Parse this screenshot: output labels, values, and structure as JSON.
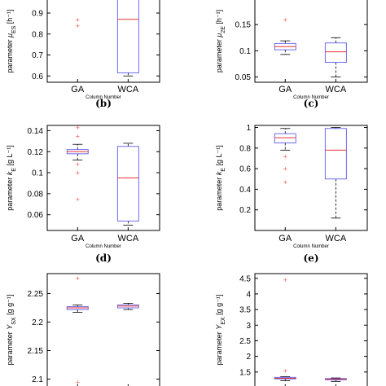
{
  "colors": {
    "box": "#5b5bf0",
    "median": "#ee3333",
    "whisker": "#000000",
    "outlier": "#ee5555"
  },
  "chart_data": [
    {
      "panel": "(b)",
      "type": "box",
      "ylabel_param": "parameter",
      "ylabel_sym": "μ",
      "ylabel_sub": "ES",
      "ylabel_unit": "[h⁻¹]",
      "xlabel": "Column Number",
      "categories": [
        "GA",
        "WCA"
      ],
      "ylim": [
        0.57,
        0.97
      ],
      "yticks": [
        0.6,
        0.7,
        0.8,
        0.9
      ],
      "boxes": [
        {
          "median": null,
          "q1": null,
          "q3": null,
          "whislo": null,
          "whishi": null,
          "outliers": [
            0.87,
            0.84
          ]
        },
        {
          "median": 0.87,
          "q1": 0.615,
          "q3": 1.0,
          "whislo": 0.6,
          "whishi": 1.0,
          "outliers": []
        }
      ]
    },
    {
      "panel": "(c)",
      "type": "box",
      "ylabel_param": "parameter",
      "ylabel_sym": "μ",
      "ylabel_sub": "2E",
      "ylabel_unit": "[h⁻¹]",
      "xlabel": "Column Number",
      "categories": [
        "GA",
        "WCA"
      ],
      "ylim": [
        0.04,
        0.2
      ],
      "yticks": [
        0.05,
        0.1,
        0.15
      ],
      "boxes": [
        {
          "median": 0.108,
          "q1": 0.102,
          "q3": 0.114,
          "whislo": 0.093,
          "whishi": 0.119,
          "outliers": [
            0.16
          ]
        },
        {
          "median": 0.098,
          "q1": 0.078,
          "q3": 0.115,
          "whislo": 0.05,
          "whishi": 0.125,
          "outliers": []
        }
      ]
    },
    {
      "panel": "(d)",
      "type": "box",
      "ylabel_param": "parameter",
      "ylabel_sym": "k",
      "ylabel_sub": "E",
      "ylabel_unit": "[g L⁻¹]",
      "xlabel": "Column Number",
      "categories": [
        "GA",
        "WCA"
      ],
      "ylim": [
        0.045,
        0.145
      ],
      "yticks": [
        0.06,
        0.08,
        0.1,
        0.12,
        0.14
      ],
      "boxes": [
        {
          "median": 0.12,
          "q1": 0.118,
          "q3": 0.122,
          "whislo": 0.112,
          "whishi": 0.127,
          "outliers": [
            0.143,
            0.135,
            0.108,
            0.1,
            0.075
          ]
        },
        {
          "median": 0.095,
          "q1": 0.054,
          "q3": 0.125,
          "whislo": 0.05,
          "whishi": 0.128,
          "outliers": []
        }
      ]
    },
    {
      "panel": "(e)",
      "type": "box",
      "ylabel_param": "parameter",
      "ylabel_sym": "k",
      "ylabel_sub": "E",
      "ylabel_unit": "[g L⁻¹]",
      "xlabel": "Column Number",
      "categories": [
        "GA",
        "WCA"
      ],
      "ylim": [
        0.0,
        1.02
      ],
      "yticks": [
        0.2,
        0.4,
        0.6,
        0.8,
        1
      ],
      "boxes": [
        {
          "median": 0.9,
          "q1": 0.85,
          "q3": 0.94,
          "whislo": 0.78,
          "whishi": 0.99,
          "outliers": [
            0.72,
            0.6,
            0.47
          ]
        },
        {
          "median": 0.78,
          "q1": 0.5,
          "q3": 0.99,
          "whislo": 0.12,
          "whishi": 1.0,
          "outliers": []
        }
      ]
    },
    {
      "panel": "",
      "type": "box",
      "ylabel_param": "parameter",
      "ylabel_sym": "Y",
      "ylabel_sub": "SX",
      "ylabel_unit": "[g g⁻¹]",
      "xlabel": "",
      "categories": [
        "",
        ""
      ],
      "ylim": [
        2.085,
        2.285
      ],
      "yticks": [
        2.1,
        2.15,
        2.2,
        2.25
      ],
      "boxes": [
        {
          "median": 2.225,
          "q1": 2.222,
          "q3": 2.227,
          "whislo": 2.217,
          "whishi": 2.23,
          "outliers": [
            2.277,
            2.095
          ]
        },
        {
          "median": 2.228,
          "q1": 2.225,
          "q3": 2.23,
          "whislo": 2.222,
          "whishi": 2.233,
          "outliers": []
        }
      ]
    },
    {
      "panel": "",
      "type": "box",
      "ylabel_param": "parameter",
      "ylabel_sym": "Y",
      "ylabel_sub": "EX",
      "ylabel_unit": "[g g⁻¹]",
      "xlabel": "",
      "categories": [
        "",
        ""
      ],
      "ylim": [
        1.0,
        4.65
      ],
      "yticks": [
        1.5,
        2,
        2.5,
        3,
        3.5,
        4,
        4.5
      ],
      "boxes": [
        {
          "median": 1.3,
          "q1": 1.28,
          "q3": 1.33,
          "whislo": 1.22,
          "whishi": 1.35,
          "outliers": [
            4.45,
            1.55
          ]
        },
        {
          "median": 1.27,
          "q1": 1.25,
          "q3": 1.29,
          "whislo": 1.2,
          "whishi": 1.31,
          "outliers": []
        }
      ]
    }
  ]
}
